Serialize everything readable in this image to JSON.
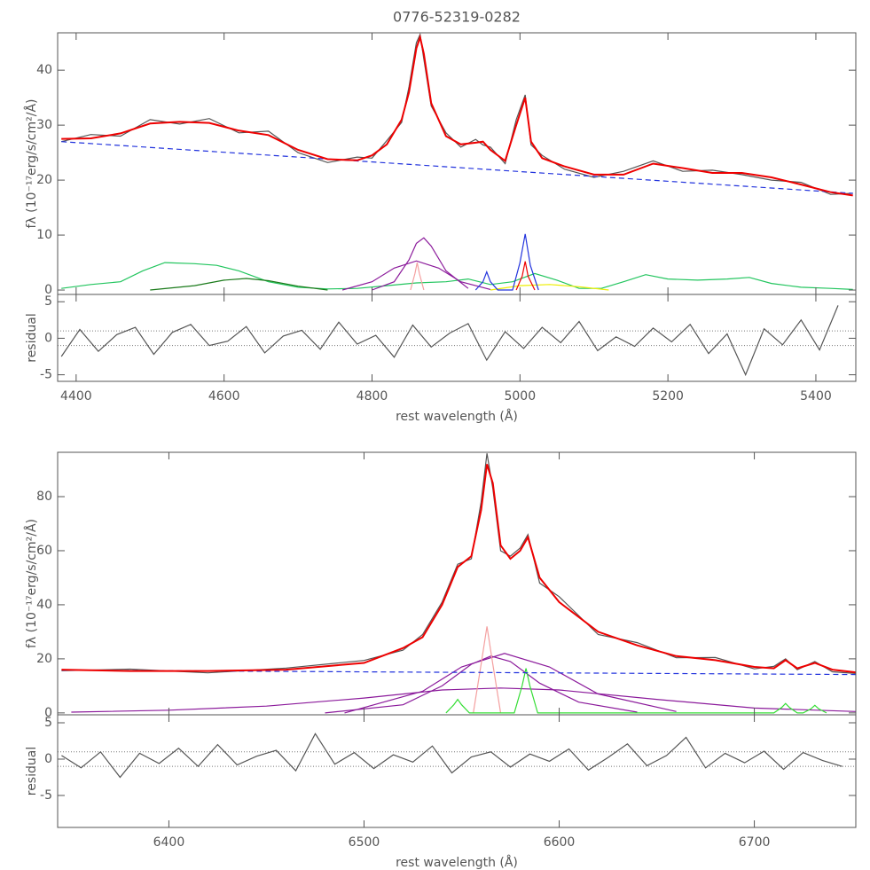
{
  "chart_data": [
    {
      "type": "line",
      "title": "0776-52319-0282",
      "ylabel": "fλ (10⁻¹⁷erg/s/cm²/Å)",
      "xlim": [
        4375,
        5454
      ],
      "ylim": [
        -0.8,
        46.8
      ],
      "xticks": [
        4400,
        4600,
        4800,
        5000,
        5200,
        5400
      ],
      "yticks": [
        0,
        10,
        20,
        30,
        40
      ],
      "x": [
        4380,
        4420,
        4460,
        4500,
        4540,
        4580,
        4620,
        4660,
        4700,
        4740,
        4780,
        4800,
        4820,
        4840,
        4850,
        4860,
        4865,
        4870,
        4880,
        4900,
        4920,
        4940,
        4950,
        4960,
        4980,
        4995,
        5007,
        5015,
        5030,
        5060,
        5100,
        5140,
        5180,
        5220,
        5260,
        5300,
        5340,
        5380,
        5420,
        5450
      ],
      "series": [
        {
          "color": "#555555",
          "values": [
            27,
            28.3,
            28,
            31,
            30.2,
            31.2,
            28.6,
            28.9,
            25,
            23.2,
            24.2,
            24,
            27.2,
            30.5,
            37,
            45,
            46.5,
            42,
            33.5,
            28.6,
            26,
            27.4,
            26.4,
            26,
            23,
            31,
            35.5,
            26.4,
            24.5,
            22,
            20.5,
            21.6,
            23.5,
            21.6,
            21.8,
            21,
            20,
            19.6,
            17.4,
            17.6
          ]
        },
        {
          "color": "#22c55e",
          "x": [
            4380,
            4420,
            4460,
            4490,
            4520,
            4560,
            4590,
            4620,
            4660,
            4700,
            4740,
            4780,
            4820,
            4860,
            4900,
            4930,
            4960,
            4990,
            5020,
            5050,
            5080,
            5110,
            5140,
            5170,
            5200,
            5240,
            5280,
            5310,
            5340,
            5380,
            5420,
            5450
          ],
          "values": [
            0.3,
            1.0,
            1.5,
            3.5,
            5.0,
            4.8,
            4.5,
            3.5,
            1.5,
            0.5,
            0.2,
            0.3,
            0.8,
            1.3,
            1.5,
            2.0,
            1.0,
            1.5,
            3.0,
            1.8,
            0.3,
            0.3,
            1.5,
            2.8,
            2.0,
            1.8,
            2.0,
            2.3,
            1.2,
            0.5,
            0.3,
            0.1
          ]
        },
        {
          "color": "#1a7a1a",
          "x": [
            4500,
            4560,
            4600,
            4630,
            4660,
            4700,
            4740
          ],
          "values": [
            0,
            0.8,
            1.8,
            2.1,
            1.7,
            0.7,
            0
          ]
        },
        {
          "color": "#eeee00",
          "x": [
            4960,
            5000,
            5040,
            5080,
            5120
          ],
          "values": [
            0,
            0.8,
            1.0,
            0.6,
            0
          ]
        },
        {
          "color": "#8b1a9b",
          "x": [
            4760,
            4800,
            4830,
            4860,
            4890,
            4920,
            4960
          ],
          "values": [
            0,
            1.5,
            4,
            5.3,
            4,
            1.5,
            0.1
          ]
        },
        {
          "color": "#8b1a9b",
          "x": [
            4800,
            4830,
            4850,
            4860,
            4870,
            4880,
            4900,
            4930
          ],
          "values": [
            0,
            1.5,
            5.5,
            8.5,
            9.5,
            8,
            3.5,
            0.3
          ]
        },
        {
          "color": "#f4a0a0",
          "x": [
            4852,
            4858,
            4861,
            4864,
            4870
          ],
          "values": [
            0,
            3,
            5,
            3,
            0
          ]
        },
        {
          "color": "#2233dd",
          "x": [
            4940,
            4950,
            4955,
            4960,
            4970,
            4990,
            5000,
            5007,
            5014,
            5025
          ],
          "values": [
            0,
            1.5,
            3.3,
            1.5,
            0,
            0,
            5,
            10.2,
            4.5,
            0
          ]
        },
        {
          "color": "#ee0000",
          "x": [
            4995,
            5003,
            5007,
            5011,
            5020
          ],
          "values": [
            0,
            2.5,
            5.2,
            2.5,
            0
          ]
        },
        {
          "color": "#2233dd",
          "dash": true,
          "x": [
            4380,
            5450
          ],
          "values": [
            27.0,
            17.6
          ]
        },
        {
          "color": "#ee0000",
          "width": 2,
          "values": [
            27.5,
            27.6,
            28.5,
            30.3,
            30.6,
            30.4,
            29.0,
            28.2,
            25.5,
            23.8,
            23.6,
            24.5,
            26.5,
            31,
            36,
            44,
            46,
            43,
            34,
            28,
            26.5,
            26.8,
            27,
            25.5,
            23.5,
            30,
            35,
            27,
            24,
            22.5,
            21,
            21,
            23,
            22.2,
            21.3,
            21.3,
            20.5,
            19.2,
            17.8,
            17.2
          ]
        }
      ]
    },
    {
      "type": "line",
      "ylabel": "residual",
      "xlabel": "rest wavelength (Å)",
      "xlim": [
        4375,
        5454
      ],
      "ylim": [
        -5.9,
        6
      ],
      "xticks": [
        4400,
        4600,
        4800,
        5000,
        5200,
        5400
      ],
      "yticks": [
        -5,
        0,
        5
      ],
      "hlines": [
        -1,
        1
      ],
      "x": [
        4380,
        4405,
        4430,
        4455,
        4480,
        4505,
        4530,
        4555,
        4580,
        4605,
        4630,
        4655,
        4680,
        4705,
        4730,
        4755,
        4780,
        4805,
        4830,
        4855,
        4880,
        4905,
        4930,
        4955,
        4980,
        5005,
        5030,
        5055,
        5080,
        5105,
        5130,
        5155,
        5180,
        5205,
        5230,
        5255,
        5280,
        5305,
        5330,
        5355,
        5380,
        5405,
        5430
      ],
      "series": [
        {
          "color": "#555555",
          "values": [
            -2.5,
            1.2,
            -1.8,
            0.5,
            1.5,
            -2.2,
            0.8,
            1.9,
            -1.0,
            -0.4,
            1.6,
            -2.0,
            0.3,
            1.1,
            -1.5,
            2.2,
            -0.8,
            0.4,
            -2.6,
            1.8,
            -1.2,
            0.7,
            2.0,
            -3.0,
            0.9,
            -1.4,
            1.5,
            -0.6,
            2.3,
            -1.7,
            0.2,
            -1.1,
            1.4,
            -0.5,
            1.9,
            -2.1,
            0.6,
            -5.0,
            1.3,
            -0.9,
            2.5,
            -1.6,
            4.5
          ]
        }
      ]
    },
    {
      "type": "line",
      "ylabel": "fλ (10⁻¹⁷erg/s/cm²/Å)",
      "xlim": [
        6343,
        6752
      ],
      "ylim": [
        -0.7,
        96.4
      ],
      "xticks": [
        6400,
        6500,
        6600,
        6700
      ],
      "yticks": [
        0,
        20,
        40,
        60,
        80
      ],
      "x": [
        6345,
        6380,
        6420,
        6460,
        6500,
        6520,
        6530,
        6540,
        6548,
        6555,
        6560,
        6563,
        6566,
        6570,
        6575,
        6580,
        6584,
        6590,
        6600,
        6620,
        6640,
        6660,
        6680,
        6700,
        6710,
        6716,
        6722,
        6731,
        6740,
        6752
      ],
      "series": [
        {
          "color": "#555555",
          "values": [
            15.6,
            16.2,
            14.8,
            16.6,
            19.4,
            23.2,
            29,
            41,
            55,
            57,
            78,
            96,
            83,
            60,
            58,
            61,
            66,
            48,
            43,
            29,
            26,
            20.4,
            20.5,
            16.3,
            17.2,
            20,
            16,
            19,
            15.2,
            14.6
          ]
        },
        {
          "color": "#8b1a9b",
          "x": [
            6350,
            6400,
            6450,
            6500,
            6540,
            6570,
            6600,
            6650,
            6700,
            6752
          ],
          "values": [
            0.3,
            1,
            2.5,
            5.5,
            8.5,
            9.2,
            8.5,
            5,
            1.8,
            0.5
          ]
        },
        {
          "color": "#8b1a9b",
          "x": [
            6480,
            6520,
            6540,
            6555,
            6565,
            6575,
            6590,
            6610,
            6640
          ],
          "values": [
            0,
            3,
            10,
            18,
            21,
            19,
            11,
            4,
            0.3
          ]
        },
        {
          "color": "#8b1a9b",
          "x": [
            6490,
            6530,
            6550,
            6572,
            6595,
            6620,
            6660
          ],
          "values": [
            0,
            8,
            17,
            22,
            17,
            7,
            0.5
          ]
        },
        {
          "color": "#f4a0a0",
          "x": [
            6556,
            6560,
            6563,
            6566,
            6570
          ],
          "values": [
            0,
            18,
            32,
            18,
            0
          ]
        },
        {
          "color": "#33dd33",
          "x": [
            6542,
            6546,
            6548,
            6550,
            6554,
            6577,
            6581,
            6583,
            6585,
            6589,
            6710,
            6714,
            6716,
            6718,
            6722,
            6725,
            6729,
            6731,
            6733,
            6737
          ],
          "values": [
            0,
            3,
            5,
            3,
            0,
            0,
            10,
            16.5,
            10,
            0,
            0,
            2,
            3.5,
            2,
            0,
            0,
            1.5,
            2.8,
            1.5,
            0
          ]
        },
        {
          "color": "#2233dd",
          "dash": true,
          "x": [
            6345,
            6752
          ],
          "values": [
            15.8,
            14.2
          ]
        },
        {
          "color": "#ee0000",
          "width": 2,
          "values": [
            16,
            15.5,
            15.5,
            16,
            18.5,
            24,
            28,
            40,
            54,
            58,
            75,
            92,
            85,
            62,
            57,
            60,
            65,
            50,
            41,
            30,
            25,
            21,
            19.5,
            17,
            16.5,
            19.5,
            16.5,
            18.5,
            16,
            15
          ]
        }
      ]
    },
    {
      "type": "line",
      "ylabel": "residual",
      "xlabel": "rest wavelength (Å)",
      "xlim": [
        6343,
        6752
      ],
      "ylim": [
        -9.4,
        6.1
      ],
      "xticks": [
        6400,
        6500,
        6600,
        6700
      ],
      "yticks": [
        -5,
        0,
        5
      ],
      "hlines": [
        -1,
        1
      ],
      "x": [
        6345,
        6355,
        6365,
        6375,
        6385,
        6395,
        6405,
        6415,
        6425,
        6435,
        6445,
        6455,
        6465,
        6475,
        6485,
        6495,
        6505,
        6515,
        6525,
        6535,
        6545,
        6555,
        6565,
        6575,
        6585,
        6595,
        6605,
        6615,
        6625,
        6635,
        6645,
        6655,
        6665,
        6675,
        6685,
        6695,
        6705,
        6715,
        6725,
        6735,
        6745
      ],
      "series": [
        {
          "color": "#555555",
          "values": [
            0.5,
            -1.2,
            1.0,
            -2.5,
            0.8,
            -0.6,
            1.5,
            -1.0,
            2.0,
            -0.8,
            0.4,
            1.2,
            -1.6,
            3.5,
            -0.7,
            0.9,
            -1.3,
            0.6,
            -0.4,
            1.8,
            -1.9,
            0.3,
            1.0,
            -1.1,
            0.7,
            -0.3,
            1.4,
            -1.5,
            0.2,
            2.1,
            -0.9,
            0.5,
            3.0,
            -1.2,
            0.8,
            -0.5,
            1.1,
            -1.4,
            0.9,
            -0.2,
            -1.0
          ]
        }
      ]
    }
  ]
}
